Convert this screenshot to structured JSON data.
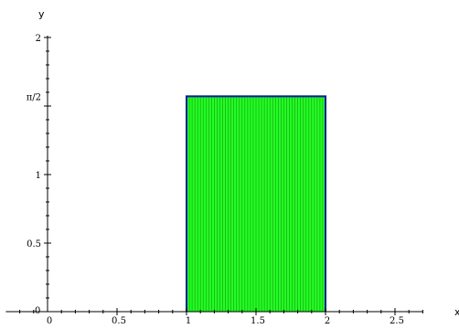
{
  "chart_data": {
    "type": "area",
    "title": "",
    "xlabel": "x",
    "ylabel": "y",
    "xlim": [
      -0.3,
      2.7
    ],
    "ylim": [
      0,
      2
    ],
    "x_ticks": [
      {
        "value": 0,
        "label": "0"
      },
      {
        "value": 0.5,
        "label": "0.5"
      },
      {
        "value": 1,
        "label": "1"
      },
      {
        "value": 1.5,
        "label": "1.5"
      },
      {
        "value": 2,
        "label": "2"
      },
      {
        "value": 2.5,
        "label": "2.5"
      }
    ],
    "y_ticks": [
      {
        "value": 0,
        "label": "0"
      },
      {
        "value": 0.5,
        "label": "0.5"
      },
      {
        "value": 1,
        "label": "1"
      },
      {
        "value": 1.5708,
        "label": "π/2"
      },
      {
        "value": 2,
        "label": "2"
      }
    ],
    "series": [
      {
        "x": [
          1,
          2
        ],
        "y": [
          1.5708,
          1.5708
        ],
        "baseline": 0,
        "fill": "#22ff22",
        "hatch_color": "#1aa01a",
        "edge_color": "#001a99",
        "hatch_step": 0.02
      }
    ],
    "grid": false
  }
}
